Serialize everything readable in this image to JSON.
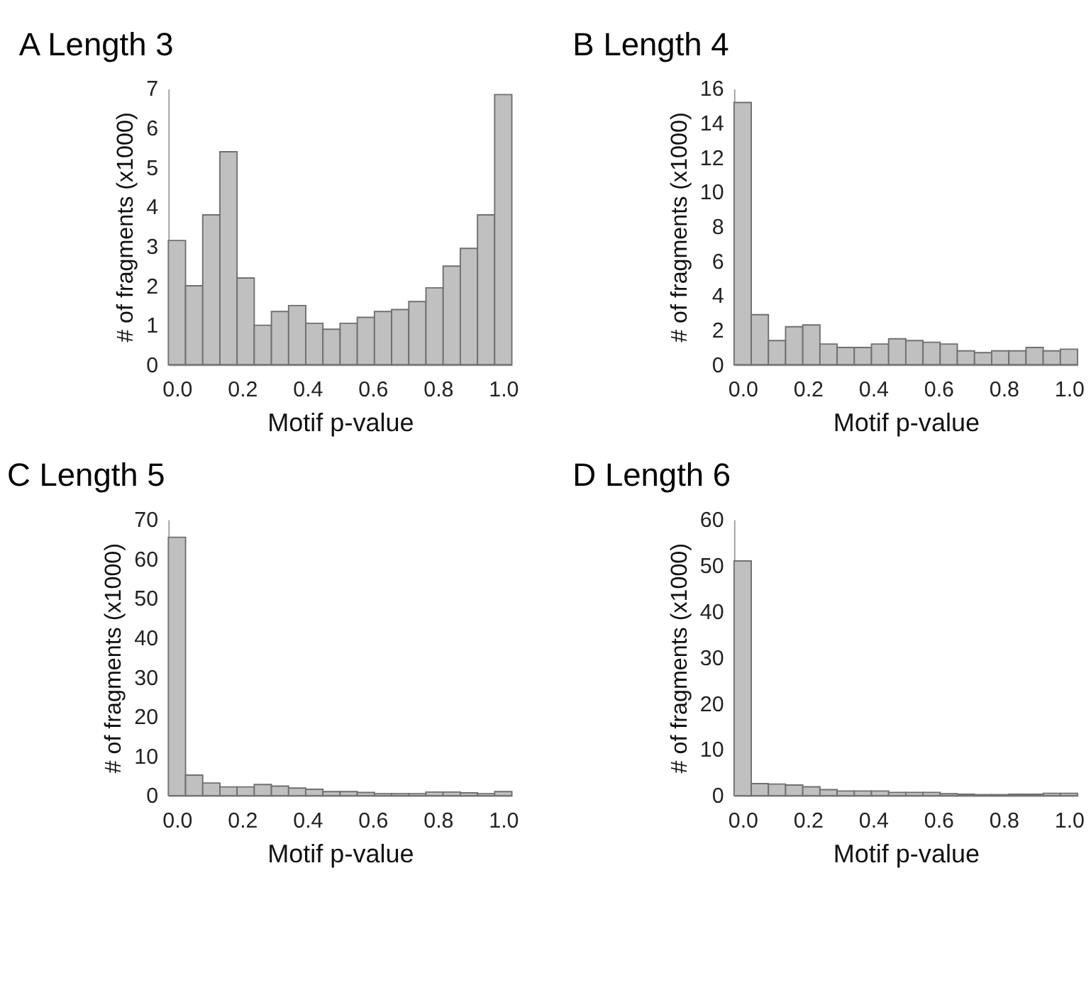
{
  "chart_data": [
    {
      "type": "histogram",
      "title": "A  Length 3",
      "xlabel": "Motif p-value",
      "ylabel": "# of fragments (x1000)",
      "color": "#c0c0c0",
      "bins": [
        0,
        0.05,
        0.1,
        0.15,
        0.2,
        0.25,
        0.3,
        0.35,
        0.4,
        0.45,
        0.5,
        0.55,
        0.6,
        0.65,
        0.7,
        0.75,
        0.8,
        0.85,
        0.9,
        0.95,
        1.0
      ],
      "values": [
        3.15,
        2.0,
        3.8,
        5.4,
        2.2,
        1.0,
        1.35,
        1.5,
        1.05,
        0.9,
        1.05,
        1.2,
        1.35,
        1.4,
        1.6,
        1.95,
        2.5,
        2.95,
        3.8,
        6.85
      ],
      "xlim": [
        0,
        1
      ],
      "xticks": [
        {
          "value": 0.025,
          "label": "0.0"
        },
        {
          "value": 0.215,
          "label": "0.2"
        },
        {
          "value": 0.405,
          "label": "0.4"
        },
        {
          "value": 0.595,
          "label": "0.6"
        },
        {
          "value": 0.785,
          "label": "0.8"
        },
        {
          "value": 0.975,
          "label": "1.0"
        }
      ],
      "ylim": [
        0,
        7
      ],
      "yticks": [
        0,
        1,
        2,
        3,
        4,
        5,
        6,
        7
      ]
    },
    {
      "type": "histogram",
      "title": "B  Length 4",
      "xlabel": "Motif p-value",
      "ylabel": "# of fragments (x1000)",
      "color": "#c0c0c0",
      "bins": [
        0,
        0.05,
        0.1,
        0.15,
        0.2,
        0.25,
        0.3,
        0.35,
        0.4,
        0.45,
        0.5,
        0.55,
        0.6,
        0.65,
        0.7,
        0.75,
        0.8,
        0.85,
        0.9,
        0.95,
        1.0
      ],
      "values": [
        15.2,
        2.9,
        1.4,
        2.2,
        2.3,
        1.2,
        1.0,
        1.0,
        1.2,
        1.5,
        1.4,
        1.3,
        1.2,
        0.8,
        0.7,
        0.8,
        0.8,
        1.0,
        0.8,
        0.9
      ],
      "xlim": [
        0,
        1
      ],
      "xticks": [
        {
          "value": 0.025,
          "label": "0.0"
        },
        {
          "value": 0.215,
          "label": "0.2"
        },
        {
          "value": 0.405,
          "label": "0.4"
        },
        {
          "value": 0.595,
          "label": "0.6"
        },
        {
          "value": 0.785,
          "label": "0.8"
        },
        {
          "value": 0.975,
          "label": "1.0"
        }
      ],
      "ylim": [
        0,
        16
      ],
      "yticks": [
        0,
        2,
        4,
        6,
        8,
        10,
        12,
        14,
        16
      ]
    },
    {
      "type": "histogram",
      "title": "C  Length 5",
      "xlabel": "Motif p-value",
      "ylabel": "# of fragments (x1000)",
      "color": "#c0c0c0",
      "bins": [
        0,
        0.05,
        0.1,
        0.15,
        0.2,
        0.25,
        0.3,
        0.35,
        0.4,
        0.45,
        0.5,
        0.55,
        0.6,
        0.65,
        0.7,
        0.75,
        0.8,
        0.85,
        0.9,
        0.95,
        1.0
      ],
      "values": [
        65.5,
        5.2,
        3.2,
        2.2,
        2.2,
        2.8,
        2.4,
        1.9,
        1.6,
        1.0,
        1.0,
        0.8,
        0.5,
        0.5,
        0.5,
        0.9,
        0.9,
        0.7,
        0.5,
        1.0
      ],
      "xlim": [
        0,
        1
      ],
      "xticks": [
        {
          "value": 0.025,
          "label": "0.0"
        },
        {
          "value": 0.215,
          "label": "0.2"
        },
        {
          "value": 0.405,
          "label": "0.4"
        },
        {
          "value": 0.595,
          "label": "0.6"
        },
        {
          "value": 0.785,
          "label": "0.8"
        },
        {
          "value": 0.975,
          "label": "1.0"
        }
      ],
      "ylim": [
        0,
        70
      ],
      "yticks": [
        0,
        10,
        20,
        30,
        40,
        50,
        60,
        70
      ]
    },
    {
      "type": "histogram",
      "title": "D  Length 6",
      "xlabel": "Motif p-value",
      "ylabel": "# of fragments (x1000)",
      "color": "#c0c0c0",
      "bins": [
        0,
        0.05,
        0.1,
        0.15,
        0.2,
        0.25,
        0.3,
        0.35,
        0.4,
        0.45,
        0.5,
        0.55,
        0.6,
        0.65,
        0.7,
        0.75,
        0.8,
        0.85,
        0.9,
        0.95,
        1.0
      ],
      "values": [
        51,
        2.6,
        2.5,
        2.3,
        1.9,
        1.3,
        1.0,
        1.0,
        1.0,
        0.7,
        0.7,
        0.7,
        0.4,
        0.3,
        0.2,
        0.2,
        0.3,
        0.3,
        0.5,
        0.5
      ],
      "xlim": [
        0,
        1
      ],
      "xticks": [
        {
          "value": 0.025,
          "label": "0.0"
        },
        {
          "value": 0.215,
          "label": "0.2"
        },
        {
          "value": 0.405,
          "label": "0.4"
        },
        {
          "value": 0.595,
          "label": "0.6"
        },
        {
          "value": 0.785,
          "label": "0.8"
        },
        {
          "value": 0.975,
          "label": "1.0"
        }
      ],
      "ylim": [
        0,
        60
      ],
      "yticks": [
        0,
        10,
        20,
        30,
        40,
        50,
        60
      ]
    }
  ]
}
